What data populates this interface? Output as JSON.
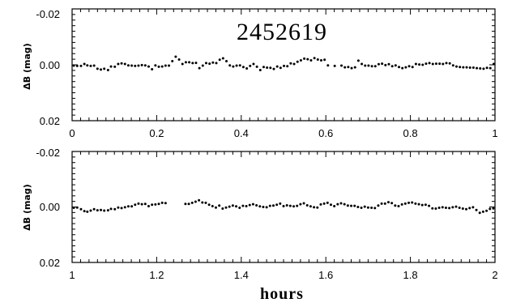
{
  "chart_data": [
    {
      "type": "scatter",
      "panel": "top",
      "annotation": "2452619",
      "xlabel": "",
      "ylabel": "ΔB (mag)",
      "xlim": [
        0,
        1
      ],
      "ylim": [
        0.02,
        -0.02
      ],
      "y_inverted": true,
      "x_ticks": [
        "0",
        "0.2",
        "0.4",
        "0.6",
        "0.8",
        "1"
      ],
      "y_ticks": [
        "-0.02",
        "0.00",
        "0.02"
      ],
      "grid": false,
      "legend": "none",
      "x": [
        0.004,
        0.012,
        0.021,
        0.029,
        0.036,
        0.044,
        0.052,
        0.06,
        0.068,
        0.076,
        0.085,
        0.092,
        0.101,
        0.109,
        0.117,
        0.125,
        0.133,
        0.141,
        0.149,
        0.157,
        0.165,
        0.173,
        0.181,
        0.189,
        0.197,
        0.205,
        0.213,
        0.221,
        0.229,
        0.237,
        0.245,
        0.253,
        0.261,
        0.269,
        0.277,
        0.285,
        0.293,
        0.301,
        0.309,
        0.317,
        0.325,
        0.333,
        0.341,
        0.349,
        0.357,
        0.365,
        0.373,
        0.381,
        0.389,
        0.397,
        0.405,
        0.413,
        0.421,
        0.429,
        0.437,
        0.445,
        0.453,
        0.461,
        0.469,
        0.477,
        0.485,
        0.493,
        0.501,
        0.509,
        0.517,
        0.525,
        0.533,
        0.541,
        0.549,
        0.557,
        0.565,
        0.573,
        0.581,
        0.589,
        0.597,
        0.605,
        0.621,
        0.637,
        0.645,
        0.653,
        0.661,
        0.669,
        0.677,
        0.685,
        0.693,
        0.701,
        0.709,
        0.717,
        0.725,
        0.733,
        0.741,
        0.749,
        0.757,
        0.765,
        0.773,
        0.781,
        0.789,
        0.797,
        0.805,
        0.813,
        0.821,
        0.829,
        0.837,
        0.845,
        0.853,
        0.861,
        0.869,
        0.877,
        0.885,
        0.893,
        0.901,
        0.909,
        0.917,
        0.925,
        0.933,
        0.941,
        0.949,
        0.957,
        0.965,
        0.973,
        0.981,
        0.989,
        0.997
      ],
      "y": [
        0.0003,
        0.0004,
        0.0004,
        -0.0003,
        0.0002,
        0.0004,
        0.0003,
        0.0014,
        0.0017,
        0.0014,
        0.0019,
        0.0006,
        0.0007,
        -0.0003,
        -0.0005,
        -0.0003,
        0.0002,
        0.0003,
        0.0004,
        0.0003,
        0.0001,
        0.0002,
        0.0006,
        0.0016,
        0.0002,
        0.0007,
        0.0006,
        0.0003,
        0.0003,
        -0.0013,
        -0.0029,
        -0.0019,
        -0.0003,
        -0.0009,
        -0.0009,
        -0.0006,
        -0.0007,
        0.0012,
        0.0003,
        -0.0006,
        -0.0004,
        -0.0008,
        -0.0006,
        -0.0018,
        -0.0023,
        -0.0013,
        0.0002,
        0.0006,
        0.0003,
        0.0002,
        0.0008,
        0.0013,
        0.0004,
        -0.0003,
        0.0007,
        0.0019,
        0.0008,
        0.001,
        0.0011,
        0.0015,
        0.0006,
        0.0011,
        0.0004,
        0.0005,
        -0.0005,
        -0.0003,
        -0.0011,
        -0.0016,
        -0.0022,
        -0.002,
        -0.0016,
        -0.0024,
        -0.0019,
        -0.0016,
        -0.0018,
        0.0002,
        0.0004,
        0.0003,
        0.0009,
        0.0008,
        0.0012,
        0.0009,
        -0.0015,
        -0.0003,
        0.0003,
        0.0003,
        0.0005,
        0.0005,
        -0.0002,
        -0.0004,
        0.0001,
        -0.0002,
        0.0005,
        0.0002,
        0.0008,
        0.0012,
        0.0009,
        0.0005,
        0.0008,
        -0.0003,
        -0.0001,
        0.0,
        -0.0004,
        -0.0006,
        -0.0003,
        -0.0004,
        -0.0004,
        -0.0003,
        -0.0006,
        -0.0005,
        0.0002,
        0.0006,
        0.0008,
        0.0009,
        0.0009,
        0.001,
        0.001,
        0.0012,
        0.0013,
        0.0014,
        0.0011,
        0.0012,
        -0.0003
      ]
    },
    {
      "type": "scatter",
      "panel": "bottom",
      "xlabel": "hours",
      "ylabel": "ΔB (mag)",
      "xlim": [
        1,
        2
      ],
      "ylim": [
        0.02,
        -0.02
      ],
      "y_inverted": true,
      "x_ticks": [
        "1",
        "1.2",
        "1.4",
        "1.6",
        "1.8",
        "2"
      ],
      "y_ticks": [
        "-0.02",
        "0.00",
        "0.02"
      ],
      "grid": false,
      "legend": "none",
      "x": [
        1.004,
        1.012,
        1.021,
        1.029,
        1.036,
        1.044,
        1.052,
        1.06,
        1.068,
        1.076,
        1.085,
        1.092,
        1.101,
        1.109,
        1.117,
        1.125,
        1.133,
        1.141,
        1.149,
        1.157,
        1.165,
        1.173,
        1.181,
        1.189,
        1.197,
        1.205,
        1.213,
        1.221,
        1.268,
        1.276,
        1.284,
        1.292,
        1.3,
        1.308,
        1.316,
        1.324,
        1.332,
        1.34,
        1.348,
        1.356,
        1.364,
        1.372,
        1.38,
        1.388,
        1.396,
        1.404,
        1.412,
        1.42,
        1.428,
        1.436,
        1.444,
        1.452,
        1.46,
        1.468,
        1.476,
        1.484,
        1.492,
        1.5,
        1.508,
        1.516,
        1.524,
        1.532,
        1.54,
        1.548,
        1.556,
        1.564,
        1.572,
        1.58,
        1.588,
        1.596,
        1.604,
        1.612,
        1.62,
        1.628,
        1.636,
        1.644,
        1.652,
        1.66,
        1.668,
        1.676,
        1.684,
        1.692,
        1.7,
        1.708,
        1.716,
        1.724,
        1.732,
        1.74,
        1.748,
        1.756,
        1.764,
        1.772,
        1.78,
        1.788,
        1.796,
        1.804,
        1.812,
        1.82,
        1.828,
        1.836,
        1.844,
        1.852,
        1.86,
        1.868,
        1.876,
        1.884,
        1.892,
        1.9,
        1.908,
        1.916,
        1.924,
        1.932,
        1.94,
        1.948,
        1.956,
        1.964,
        1.972,
        1.98,
        1.988,
        1.996
      ],
      "y": [
        0.0003,
        0.0002,
        0.0008,
        0.0015,
        0.0017,
        0.0013,
        0.0008,
        0.0012,
        0.0011,
        0.0013,
        0.0012,
        0.0007,
        0.0008,
        0.0002,
        0.0004,
        0.0001,
        -0.0002,
        -0.0002,
        -0.0008,
        -0.0012,
        -0.001,
        -0.0011,
        -0.0003,
        -0.0008,
        -0.0009,
        -0.0011,
        -0.0015,
        -0.0014,
        -0.0011,
        -0.0011,
        -0.0015,
        -0.0019,
        -0.0024,
        -0.0016,
        -0.0015,
        -0.0008,
        -0.0003,
        0.0002,
        -0.0005,
        0.0006,
        0.0002,
        -0.0001,
        -0.0005,
        -0.0002,
        0.0003,
        -0.0004,
        -0.0003,
        -0.0007,
        -0.001,
        -0.0006,
        -0.0002,
        0.0,
        0.0001,
        -0.0004,
        -0.0005,
        -0.0008,
        -0.0012,
        -0.0003,
        -0.0006,
        -0.0004,
        -0.0002,
        -0.0004,
        -0.001,
        -0.0013,
        -0.0006,
        -0.0002,
        0.0001,
        0.0002,
        -0.0009,
        -0.0012,
        -0.0015,
        -0.0008,
        -0.0003,
        -0.001,
        -0.0013,
        -0.001,
        -0.0005,
        -0.0004,
        -0.0004,
        0.0,
        0.0003,
        -0.0001,
        0.0002,
        0.0003,
        0.0004,
        -0.0005,
        -0.0012,
        -0.0012,
        -0.0017,
        -0.0014,
        -0.0005,
        -0.0003,
        -0.0009,
        -0.0012,
        -0.0015,
        -0.0016,
        -0.0012,
        -0.001,
        -0.0007,
        -0.0008,
        -0.0004,
        0.0005,
        0.0006,
        0.0003,
        0.0001,
        0.0003,
        0.0004,
        0.0001,
        -0.0001,
        0.0003,
        0.0006,
        0.0008,
        0.0004,
        0.0001,
        0.0011,
        0.0021,
        0.0017,
        0.0014,
        0.0007,
        0.0005
      ]
    }
  ]
}
